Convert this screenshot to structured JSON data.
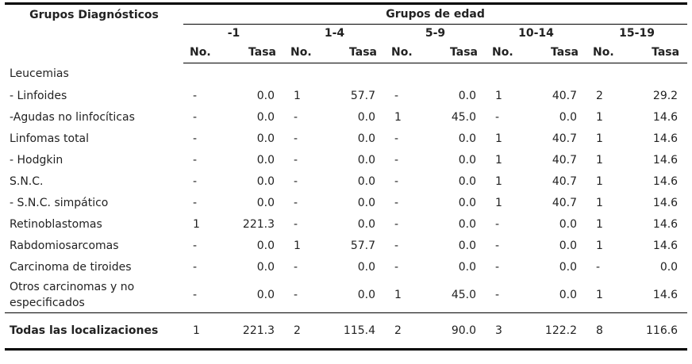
{
  "header": {
    "diag_title": "Grupos Diagnósticos",
    "age_title": "Grupos de edad",
    "age_groups": [
      "-1",
      "1-4",
      "5-9",
      "10-14",
      "15-19"
    ],
    "sub_no": "No.",
    "sub_tasa": "Tasa"
  },
  "table": {
    "rows": [
      [
        "Leucemias",
        null,
        null,
        null,
        null,
        null,
        null,
        null,
        null,
        null,
        null
      ],
      [
        "- Linfoides",
        "-",
        "0.0",
        "1",
        "57.7",
        "-",
        "0.0",
        "1",
        "40.7",
        "2",
        "29.2"
      ],
      [
        "-Agudas no linfocíticas",
        "-",
        "0.0",
        "-",
        "0.0",
        "1",
        "45.0",
        "-",
        "0.0",
        "1",
        "14.6"
      ],
      [
        "Linfomas total",
        "-",
        "0.0",
        "-",
        "0.0",
        "-",
        "0.0",
        "1",
        "40.7",
        "1",
        "14.6"
      ],
      [
        "- Hodgkin",
        "-",
        "0.0",
        "-",
        "0.0",
        "-",
        "0.0",
        "1",
        "40.7",
        "1",
        "14.6"
      ],
      [
        " S.N.C.",
        "-",
        "0.0",
        "-",
        "0.0",
        "-",
        "0.0",
        "1",
        "40.7",
        "1",
        "14.6"
      ],
      [
        "- S.N.C. simpático",
        "-",
        "0.0",
        "-",
        "0.0",
        "-",
        "0.0",
        "1",
        "40.7",
        "1",
        "14.6"
      ],
      [
        "Retinoblastomas",
        "1",
        "221.3",
        "-",
        "0.0",
        "-",
        "0.0",
        "-",
        "0.0",
        "1",
        "14.6"
      ],
      [
        "Rabdomiosarcomas",
        "-",
        "0.0",
        "1",
        "57.7",
        "-",
        "0.0",
        "-",
        "0.0",
        "1",
        "14.6"
      ],
      [
        "Carcinoma de tiroides",
        "-",
        "0.0",
        "-",
        "0.0",
        "-",
        "0.0",
        "-",
        "0.0",
        "-",
        "0.0"
      ],
      [
        "Otros carcinomas y no especificados",
        "-",
        "0.0",
        "-",
        "0.0",
        "1",
        "45.0",
        "-",
        "0.0",
        "1",
        "14.6"
      ],
      [
        "Todas las localizaciones",
        "1",
        "221.3",
        "2",
        "115.4",
        "2",
        "90.0",
        "3",
        "122.2",
        "8",
        "116.6"
      ]
    ]
  }
}
